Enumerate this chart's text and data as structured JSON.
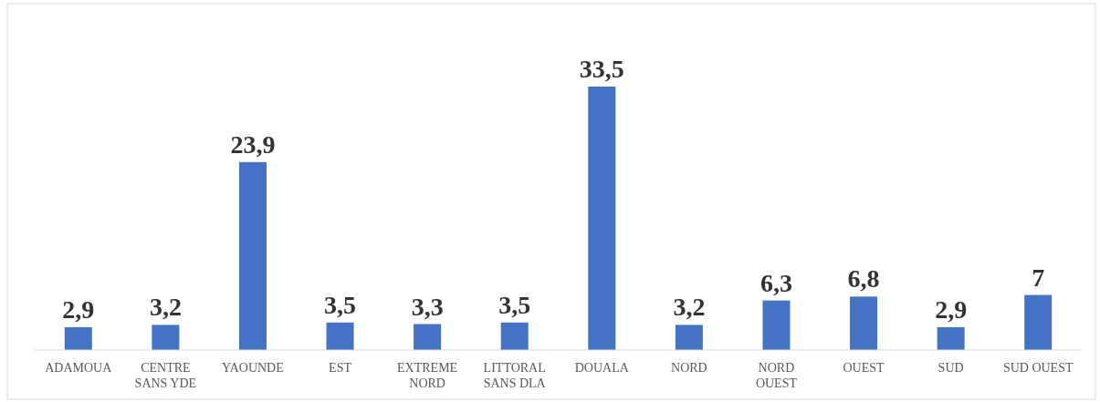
{
  "chart_data": {
    "type": "bar",
    "categories": [
      "ADAMOUA",
      "CENTRE SANS YDE",
      "YAOUNDE",
      "EST",
      "EXTREME NORD",
      "LITTORAL SANS DLA",
      "DOUALA",
      "NORD",
      "NORD OUEST",
      "OUEST",
      "SUD",
      "SUD OUEST"
    ],
    "values": [
      2.9,
      3.2,
      23.9,
      3.5,
      3.3,
      3.5,
      33.5,
      3.2,
      6.3,
      6.8,
      2.9,
      7
    ],
    "value_labels": [
      "2,9",
      "3,2",
      "23,9",
      "3,5",
      "3,3",
      "3,5",
      "33,5",
      "3,2",
      "6,3",
      "6,8",
      "2,9",
      "7"
    ],
    "color": "#4472c4",
    "data_labels": true
  }
}
